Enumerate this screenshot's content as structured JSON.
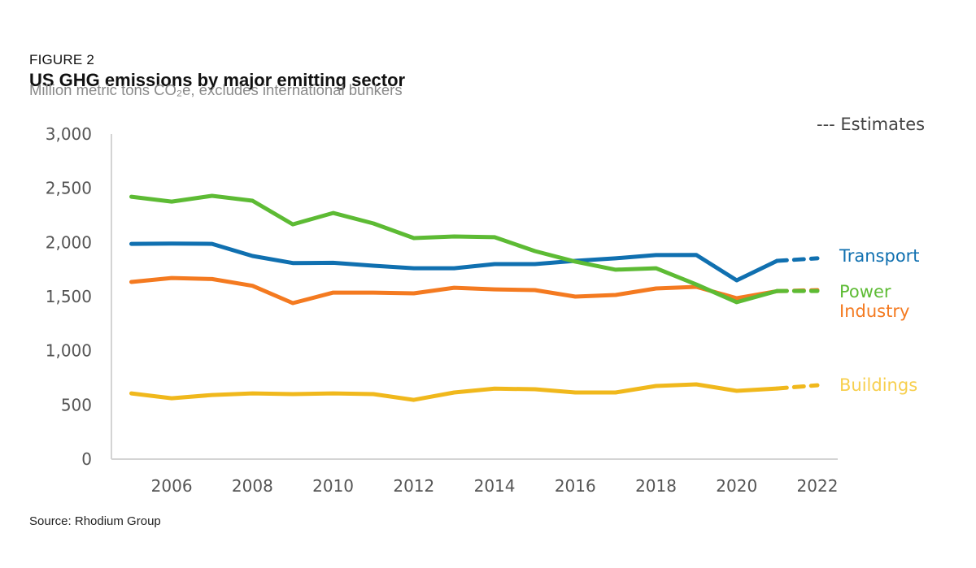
{
  "figure_label": "FIGURE 2",
  "source": "Source: Rhodium Group",
  "chart_data": {
    "type": "line",
    "title": "US GHG emissions by major emitting sector",
    "subtitle": "Million metric tons CO₂e, excludes international bunkers",
    "xlabel": "",
    "ylabel": "Million metric tons CO2e",
    "x": [
      2005,
      2006,
      2007,
      2008,
      2009,
      2010,
      2011,
      2012,
      2013,
      2014,
      2015,
      2016,
      2017,
      2018,
      2019,
      2020,
      2021,
      2022
    ],
    "xlim": [
      2005,
      2022
    ],
    "ylim": [
      0,
      3000
    ],
    "xticks": [
      "2006",
      "2008",
      "2010",
      "2012",
      "2014",
      "2016",
      "2018",
      "2020",
      "2022"
    ],
    "yticks": [
      "0",
      "500",
      "1,000",
      "1,500",
      "2,000",
      "2,500",
      "3,000"
    ],
    "estimates_from": 2021,
    "estimates_label": "--- Estimates",
    "grid": false,
    "legend_placement": "right (inline labels)",
    "series": [
      {
        "name": "Power",
        "color": "#5dbb34",
        "values": [
          2422,
          2377,
          2430,
          2385,
          2167,
          2272,
          2175,
          2040,
          2055,
          2048,
          1920,
          1823,
          1748,
          1762,
          1612,
          1448,
          1552,
          1552
        ]
      },
      {
        "name": "Transport",
        "color": "#1070b0",
        "values": [
          1987,
          1990,
          1987,
          1875,
          1810,
          1812,
          1785,
          1762,
          1762,
          1800,
          1800,
          1830,
          1853,
          1883,
          1885,
          1650,
          1830,
          1853
        ]
      },
      {
        "name": "Industry",
        "color": "#f47a20",
        "values": [
          1635,
          1672,
          1662,
          1600,
          1440,
          1537,
          1537,
          1530,
          1582,
          1567,
          1560,
          1500,
          1515,
          1575,
          1590,
          1485,
          1550,
          1560
        ]
      },
      {
        "name": "Buildings",
        "color": "#f0b81c",
        "values": [
          607,
          562,
          592,
          607,
          600,
          607,
          600,
          547,
          615,
          650,
          645,
          615,
          615,
          675,
          690,
          630,
          652,
          682
        ]
      }
    ],
    "labels": {
      "Transport": "Transport",
      "Power": "Power",
      "Industry": "Industry",
      "Buildings": "Buildings"
    },
    "label_colors": {
      "Transport": "#1070b0",
      "Power": "#5dbb34",
      "Industry": "#f47a20",
      "Buildings": "#f7cf4e"
    }
  }
}
